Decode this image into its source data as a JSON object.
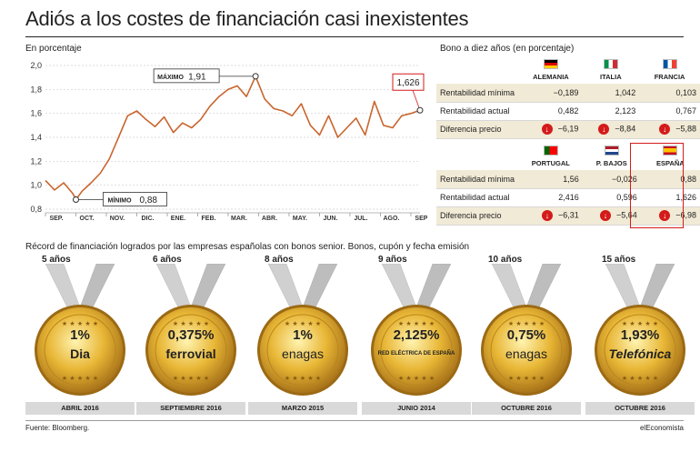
{
  "title": "Adiós a los costes de financiación casi inexistentes",
  "chart_subtitle": "En porcentaje",
  "chart_data": {
    "type": "line",
    "ylim": [
      0.8,
      2.0
    ],
    "yticks": [
      "2,0",
      "1,8",
      "1,6",
      "1,4",
      "1,2",
      "1,0",
      "0,8"
    ],
    "ytick_values": [
      2.0,
      1.8,
      1.6,
      1.4,
      1.2,
      1.0,
      0.8
    ],
    "months": [
      "SEP.",
      "OCT.",
      "NOV.",
      "DIC.",
      "ENE.",
      "FEB.",
      "MAR.",
      "ABR.",
      "MAY.",
      "JUN.",
      "JUL.",
      "AGO.",
      "SEP."
    ],
    "years": [
      "2016",
      "2017"
    ],
    "x": [
      0,
      0.3,
      0.6,
      0.9,
      1.0,
      1.2,
      1.5,
      1.8,
      2.1,
      2.4,
      2.7,
      3.0,
      3.3,
      3.6,
      3.9,
      4.2,
      4.5,
      4.8,
      5.1,
      5.4,
      5.7,
      6.0,
      6.3,
      6.6,
      6.9,
      7.2,
      7.5,
      7.8,
      8.1,
      8.4,
      8.7,
      9.0,
      9.3,
      9.6,
      9.9,
      10.2,
      10.5,
      10.8,
      11.1,
      11.4,
      11.7,
      12.0,
      12.3
    ],
    "y": [
      1.04,
      0.96,
      1.02,
      0.93,
      0.88,
      0.95,
      1.02,
      1.1,
      1.22,
      1.4,
      1.58,
      1.62,
      1.55,
      1.49,
      1.57,
      1.44,
      1.52,
      1.48,
      1.55,
      1.66,
      1.74,
      1.8,
      1.83,
      1.74,
      1.91,
      1.72,
      1.64,
      1.62,
      1.58,
      1.68,
      1.5,
      1.42,
      1.58,
      1.4,
      1.48,
      1.56,
      1.42,
      1.7,
      1.5,
      1.48,
      1.58,
      1.6,
      1.626
    ],
    "annotations": {
      "max": {
        "label": "MÁXIMO",
        "value": "1,91"
      },
      "min": {
        "label": "MÍNIMO",
        "value": "0,88"
      },
      "last": {
        "value": "1,626"
      }
    },
    "line_color": "#c9652e"
  },
  "bonds": {
    "title": "Bono a diez años (en porcentaje)",
    "row_labels": [
      "Rentabilidad mínima",
      "Rentabilidad actual",
      "Diferencia precio"
    ],
    "top": [
      {
        "country": "ALEMANIA",
        "min": "−0,189",
        "actual": "0,482",
        "diff": "−6,19"
      },
      {
        "country": "ITALIA",
        "min": "1,042",
        "actual": "2,123",
        "diff": "−8,84"
      },
      {
        "country": "FRANCIA",
        "min": "0,103",
        "actual": "0,767",
        "diff": "−5,88"
      }
    ],
    "bottom": [
      {
        "country": "PORTUGAL",
        "min": "1,56",
        "actual": "2,416",
        "diff": "−6,31"
      },
      {
        "country": "P. BAJOS",
        "min": "−0,026",
        "actual": "0,596",
        "diff": "−5,64"
      },
      {
        "country": "ESPAÑA",
        "min": "0,88",
        "actual": "1,626",
        "diff": "−6,98"
      }
    ]
  },
  "records": {
    "title": "Récord de financiación logrados por las empresas españolas con bonos senior. Bonos, cupón y fecha emisión",
    "items": [
      {
        "years": "5 años",
        "coupon": "1%",
        "company": "Dia",
        "date": "ABRIL 2016"
      },
      {
        "years": "6 años",
        "coupon": "0,375%",
        "company": "ferrovial",
        "date": "SEPTIEMBRE 2016"
      },
      {
        "years": "8 años",
        "coupon": "1%",
        "company": "enagas",
        "date": "MARZO 2015"
      },
      {
        "years": "9 años",
        "coupon": "2,125%",
        "company": "RED ELÉCTRICA DE ESPAÑA",
        "date": "JUNIO 2014"
      },
      {
        "years": "10 años",
        "coupon": "0,75%",
        "company": "enagas",
        "date": "OCTUBRE 2016"
      },
      {
        "years": "15 años",
        "coupon": "1,93%",
        "company": "Telefónica",
        "date": "OCTUBRE 2016"
      }
    ]
  },
  "footer": {
    "source": "Fuente: Bloomberg.",
    "brand": "elEconomista"
  }
}
